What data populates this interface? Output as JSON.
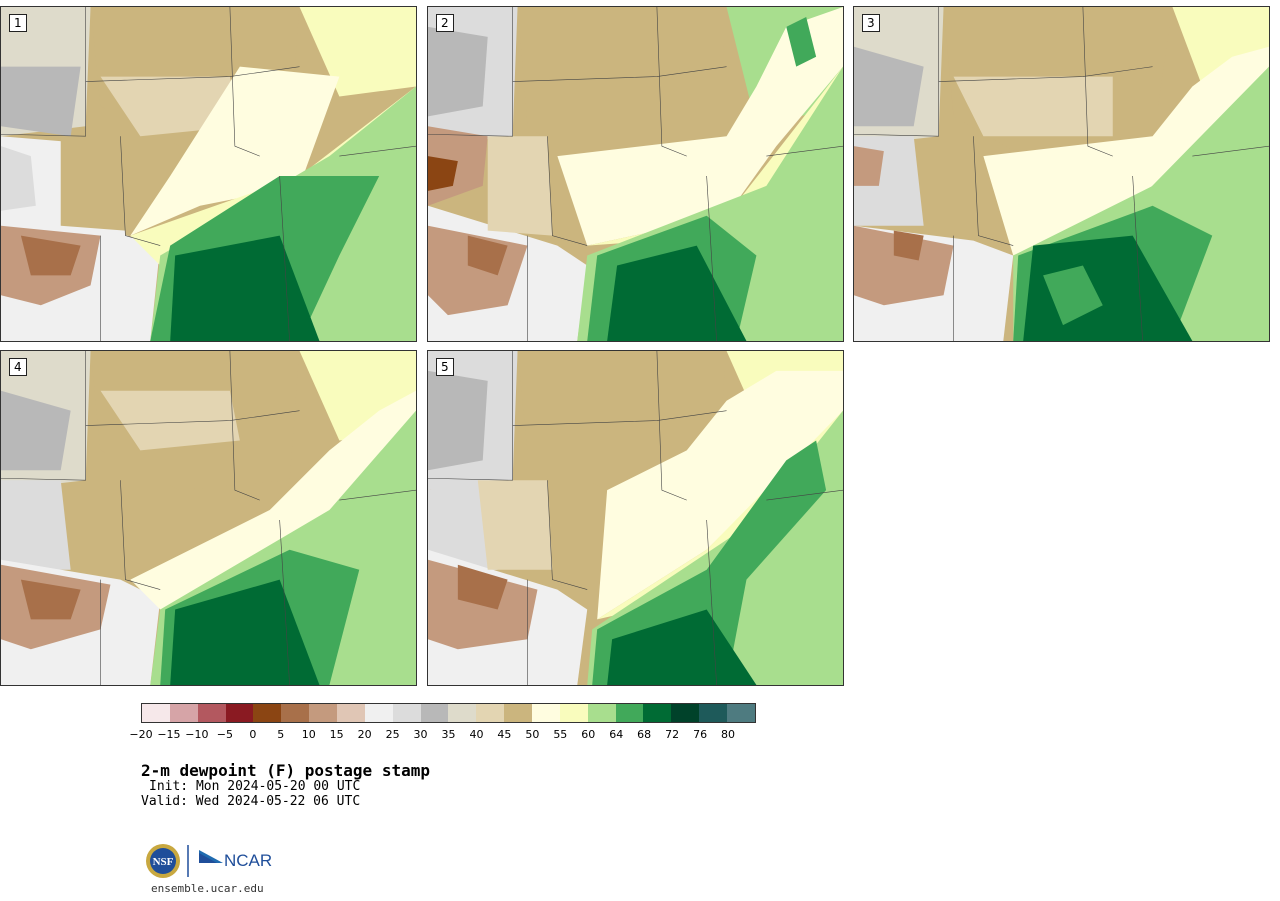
{
  "panels": [
    {
      "label": "1"
    },
    {
      "label": "2"
    },
    {
      "label": "3"
    },
    {
      "label": "4"
    },
    {
      "label": "5"
    }
  ],
  "colorbar": {
    "colors": [
      "#f6e8ea",
      "#d6a4a7",
      "#b3585f",
      "#8a1a22",
      "#8b4513",
      "#a8704a",
      "#c49a7e",
      "#e0c6b5",
      "#f0f0f0",
      "#dcdcdc",
      "#b8b8b8",
      "#dedbcb",
      "#e3d5b2",
      "#cbb57e",
      "#fffde0",
      "#f9fcbd",
      "#a8de8e",
      "#41a95a",
      "#006b34",
      "#00422a",
      "#1e5a5a",
      "#4e7b80"
    ],
    "tick_labels": [
      "−20",
      "−15",
      "−10",
      "−5",
      "0",
      "5",
      "10",
      "15",
      "20",
      "25",
      "30",
      "35",
      "40",
      "45",
      "50",
      "55",
      "60",
      "64",
      "68",
      "72",
      "76",
      "80"
    ]
  },
  "title": "2-m dewpoint (F) postage stamp",
  "init": "Init: Mon 2024-05-20 00 UTC",
  "valid": "Valid: Wed 2024-05-22 06 UTC",
  "logos": {
    "nsf": "NSF",
    "ncar": "NCAR"
  },
  "footer_url": "ensemble.ucar.edu"
}
